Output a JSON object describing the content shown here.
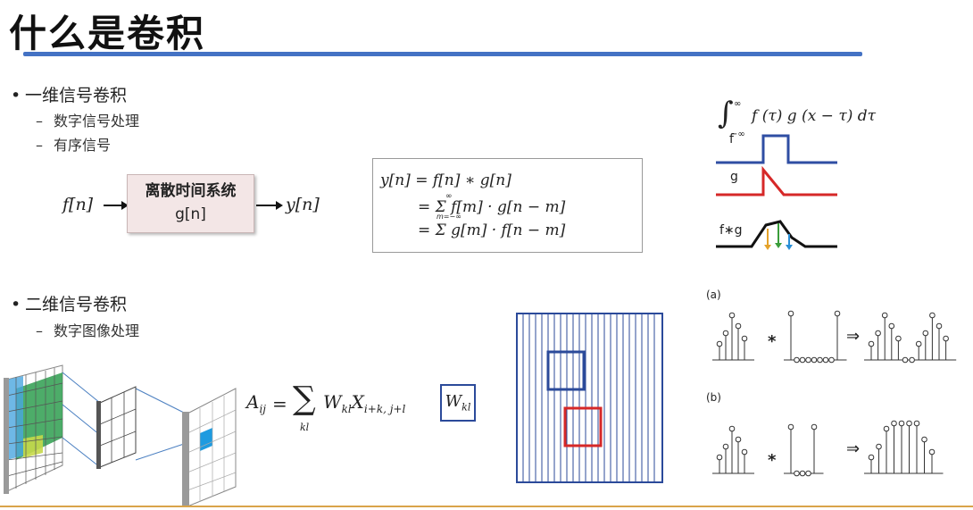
{
  "slide": {
    "title": "什么是卷积"
  },
  "section1": {
    "bullet": "一维信号卷积",
    "subitems": [
      "数字信号处理",
      "有序信号"
    ],
    "diagram": {
      "input": "f[n]",
      "box_line1": "离散时间系统",
      "box_line2": "g[n]",
      "output": "y[n]"
    },
    "formula": {
      "line1": "y[n] = f[n] ∗ g[n]",
      "line2": "= Σ f[m] · g[n − m]",
      "line3": "= Σ g[m] · f[n − m]",
      "sum_upper": "∞",
      "sum_lower": "m=−∞"
    },
    "integral": {
      "expr": "f (τ) g (x − τ) dτ",
      "upper": "∞",
      "lower": "−∞"
    },
    "signal_labels": [
      "f",
      "g",
      "f∗g"
    ]
  },
  "section2": {
    "bullet": "二维信号卷积",
    "subitems": [
      "数字图像处理"
    ],
    "formula": {
      "lhs": "A",
      "lhs_sub": "ij",
      "sum_sub": "kl",
      "term_w": "W",
      "term_w_sub": "kl",
      "term_x": "X",
      "term_x_sub": "i+k, j+l"
    },
    "kernel_box": {
      "w": "W",
      "sub": "kl"
    },
    "panel_labels": [
      "(a)",
      "(b)"
    ],
    "conv_operator": "*",
    "implies": "⇒"
  },
  "colors": {
    "title_rule": "#4472c4",
    "signal_blue": "#2f4ea3",
    "signal_red": "#d62828",
    "grid_blue": "#2b4a9a",
    "window_red": "#d62828",
    "footer_rule": "#d9a44a"
  }
}
